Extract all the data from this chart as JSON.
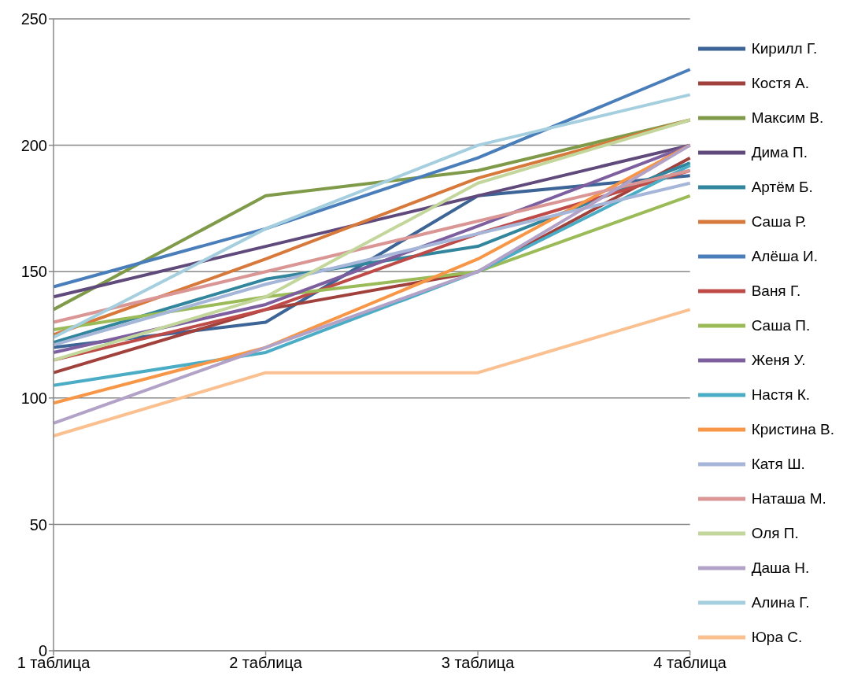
{
  "chart_data": {
    "type": "line",
    "categories": [
      "1 таблица",
      "2 таблица",
      "3 таблица",
      "4 таблица"
    ],
    "ylim": [
      0,
      250
    ],
    "yticks": [
      0,
      50,
      100,
      150,
      200,
      250
    ],
    "grid": "y",
    "legend": "right",
    "marker": "none",
    "line_style": "solid",
    "series": [
      {
        "name": "Кирилл Г.",
        "color": "#3c6496",
        "values": [
          120,
          130,
          180,
          188
        ]
      },
      {
        "name": "Костя А.",
        "color": "#a0413c",
        "values": [
          110,
          135,
          150,
          195
        ]
      },
      {
        "name": "Максим В.",
        "color": "#7f9a48",
        "values": [
          135,
          180,
          190,
          210
        ]
      },
      {
        "name": "Дима П.",
        "color": "#604a7b",
        "values": [
          140,
          160,
          180,
          200
        ]
      },
      {
        "name": "Артём Б.",
        "color": "#31859c",
        "values": [
          122,
          147,
          160,
          193
        ]
      },
      {
        "name": "Саша Р.",
        "color": "#d7793a",
        "values": [
          125,
          155,
          187,
          210
        ]
      },
      {
        "name": "Алёша И.",
        "color": "#4a7ebb",
        "values": [
          144,
          167,
          195,
          230
        ]
      },
      {
        "name": "Ваня Г.",
        "color": "#be4b48",
        "values": [
          115,
          135,
          165,
          190
        ]
      },
      {
        "name": "Саша П.",
        "color": "#9bbb59",
        "values": [
          127,
          140,
          150,
          180
        ]
      },
      {
        "name": "Женя У.",
        "color": "#7d5fa0",
        "values": [
          118,
          137,
          168,
          200
        ]
      },
      {
        "name": "Настя К.",
        "color": "#4bacc6",
        "values": [
          105,
          118,
          150,
          192
        ]
      },
      {
        "name": "Кристина В.",
        "color": "#f79646",
        "values": [
          98,
          120,
          155,
          200
        ]
      },
      {
        "name": "Катя Ш.",
        "color": "#a5b6d8",
        "values": [
          121,
          145,
          165,
          185
        ]
      },
      {
        "name": "Наташа М.",
        "color": "#d99694",
        "values": [
          130,
          150,
          170,
          190
        ]
      },
      {
        "name": "Оля П.",
        "color": "#c3d69b",
        "values": [
          115,
          140,
          185,
          210
        ]
      },
      {
        "name": "Даша Н.",
        "color": "#b3a2c7",
        "values": [
          90,
          120,
          150,
          200
        ]
      },
      {
        "name": "Алина Г.",
        "color": "#a5cfde",
        "values": [
          124,
          167,
          200,
          220
        ]
      },
      {
        "name": "Юра С.",
        "color": "#fac090",
        "values": [
          85,
          110,
          110,
          135
        ]
      }
    ]
  }
}
